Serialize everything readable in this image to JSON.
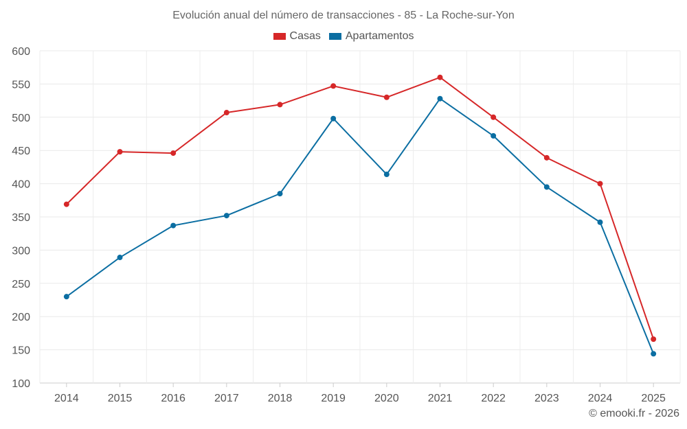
{
  "chart_data": {
    "type": "line",
    "title": "Evolución anual del número de transacciones - 85 - La Roche-sur-Yon",
    "categories": [
      "2014",
      "2015",
      "2016",
      "2017",
      "2018",
      "2019",
      "2020",
      "2021",
      "2022",
      "2023",
      "2024",
      "2025"
    ],
    "series": [
      {
        "name": "Casas",
        "color": "#d62728",
        "values": [
          369,
          448,
          446,
          507,
          519,
          547,
          530,
          560,
          500,
          439,
          400,
          166
        ]
      },
      {
        "name": "Apartamentos",
        "color": "#0b6ea2",
        "values": [
          230,
          289,
          337,
          352,
          385,
          498,
          414,
          528,
          472,
          395,
          342,
          144
        ]
      }
    ],
    "ylim": [
      100,
      600
    ],
    "yticks": [
      100,
      150,
      200,
      250,
      300,
      350,
      400,
      450,
      500,
      550,
      600
    ],
    "xlabel": "",
    "ylabel": "",
    "grid": true,
    "legend_position": "top-center"
  },
  "credit": "© emooki.fr - 2026"
}
